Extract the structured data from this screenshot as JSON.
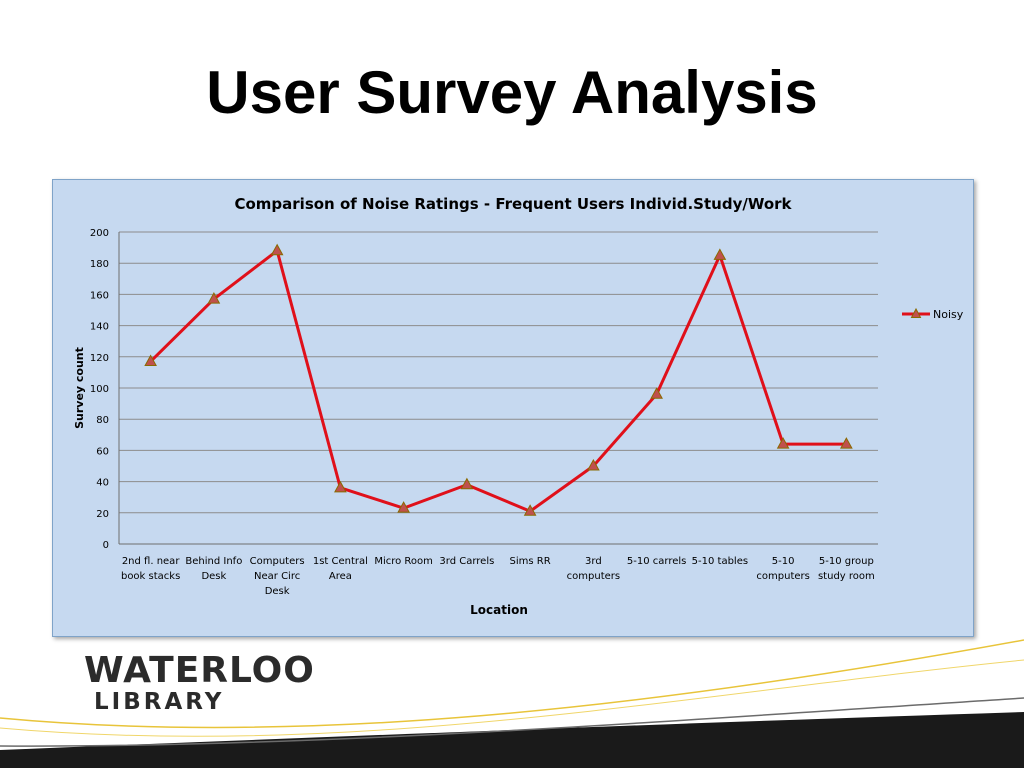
{
  "slide": {
    "title": "User Survey Analysis"
  },
  "logo": {
    "line1": "WATERLOO",
    "line2": "LIBRARY"
  },
  "colors": {
    "panel_background": "#c6d9f0",
    "series_line": "#e0101a",
    "marker_fill": "#c0504d",
    "marker_stroke": "#8a6a00",
    "gridline": "#8c8c8c"
  },
  "chart_data": {
    "type": "line",
    "title": "Comparison of Noise Ratings - Frequent Users Individ.Study/Work",
    "xlabel": "Location",
    "ylabel": "Survey count",
    "ylim": [
      0,
      200
    ],
    "yticks": [
      0,
      20,
      40,
      60,
      80,
      100,
      120,
      140,
      160,
      180,
      200
    ],
    "grid": true,
    "legend_position": "right",
    "categories": [
      "2nd fl. near book stacks",
      "Behind Info Desk",
      "Computers Near Circ Desk",
      "1st Central Area",
      "Micro Room",
      "3rd Carrels",
      "Sims RR",
      "3rd computers",
      "5-10 carrels",
      "5-10 tables",
      "5-10 computers",
      "5-10 group study room"
    ],
    "category_label_lines": [
      [
        "2nd fl. near",
        "book stacks"
      ],
      [
        "Behind Info",
        "Desk"
      ],
      [
        "Computers",
        "Near Circ",
        "Desk"
      ],
      [
        "1st Central",
        "Area"
      ],
      [
        "Micro Room"
      ],
      [
        "3rd Carrels"
      ],
      [
        "Sims RR"
      ],
      [
        "3rd",
        "computers"
      ],
      [
        "5-10 carrels"
      ],
      [
        "5-10 tables"
      ],
      [
        "5-10",
        "computers"
      ],
      [
        "5-10 group",
        "study room"
      ]
    ],
    "series": [
      {
        "name": "Noisy",
        "values": [
          117,
          157,
          188,
          36,
          23,
          38,
          21,
          50,
          96,
          185,
          64,
          64
        ]
      }
    ]
  }
}
